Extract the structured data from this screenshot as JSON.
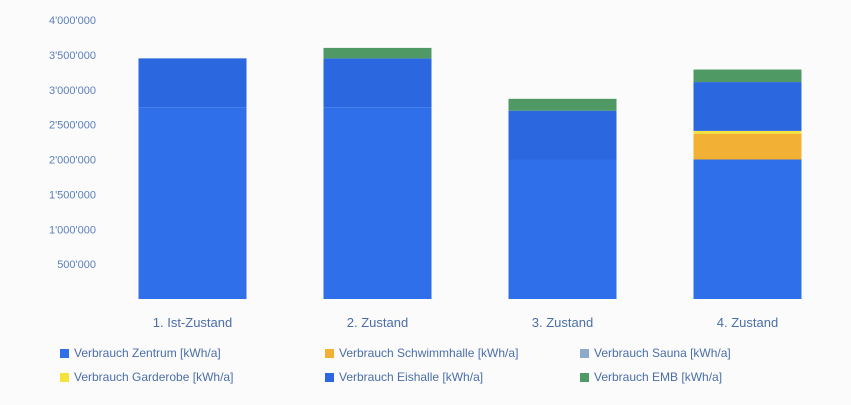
{
  "chart_data": {
    "type": "bar",
    "stacked": true,
    "categories": [
      "1. Ist-Zustand",
      "2. Zustand",
      "3. Zustand",
      "4. Zustand"
    ],
    "series": [
      {
        "name": "Verbrauch Zentrum [kWh/a]",
        "color": "#2f6fea",
        "values": [
          2750000,
          2750000,
          2000000,
          2000000
        ]
      },
      {
        "name": "Verbrauch Schwimmhalle [kWh/a]",
        "color": "#f2b134",
        "values": [
          0,
          0,
          0,
          370000
        ]
      },
      {
        "name": "Verbrauch Sauna [kWh/a]",
        "color": "#8fa9c9",
        "values": [
          0,
          0,
          0,
          0
        ]
      },
      {
        "name": "Verbrauch Garderobe [kWh/a]",
        "color": "#f6e33a",
        "values": [
          0,
          0,
          0,
          40000
        ]
      },
      {
        "name": "Verbrauch Eishalle [kWh/a]",
        "color": "#2b67df",
        "values": [
          700000,
          700000,
          700000,
          700000
        ]
      },
      {
        "name": "Verbrauch EMB [kWh/a]",
        "color": "#4f9a64",
        "values": [
          0,
          150000,
          170000,
          180000
        ]
      }
    ],
    "y_ticks": [
      "500'000",
      "1'000'000",
      "1'500'000",
      "2'000'000",
      "2'500'000",
      "3'000'000",
      "3'500'000",
      "4'000'000"
    ],
    "ylim": [
      0,
      4000000
    ],
    "grid": false,
    "legend_position": "bottom"
  }
}
